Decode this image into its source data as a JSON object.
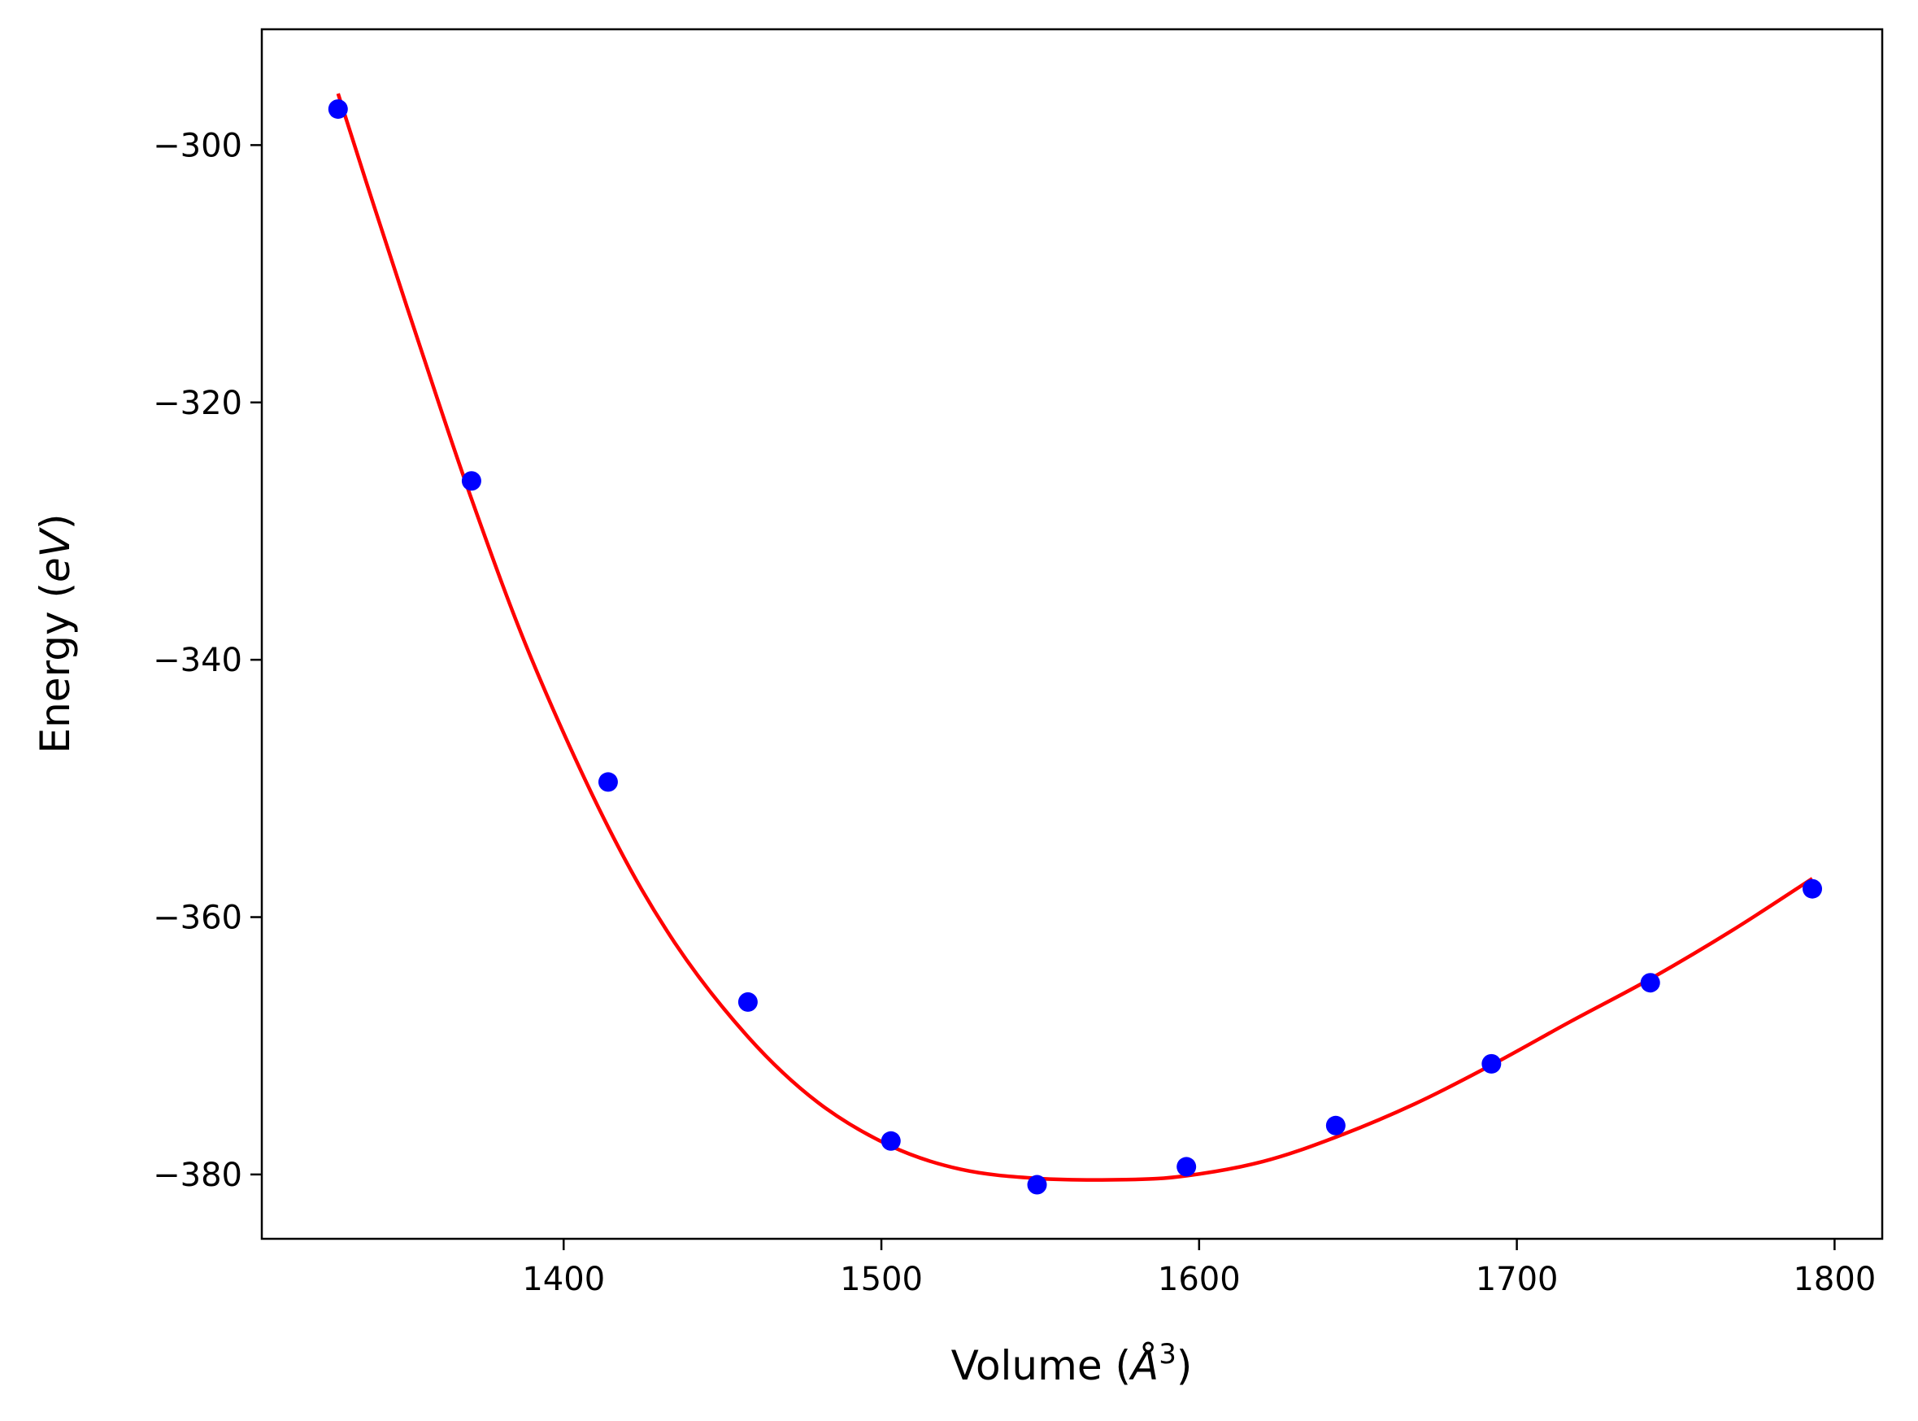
{
  "chart_data": {
    "type": "scatter",
    "xlabel": "Volume (",
    "xlabel_math": "Å",
    "xlabel_sup": "3",
    "xlabel_close": ")",
    "ylabel": "Energy (",
    "ylabel_math": "eV",
    "ylabel_close": ")",
    "xlim": [
      1305,
      1815
    ],
    "ylim": [
      -385,
      -291
    ],
    "xticks": [
      1400,
      1500,
      1600,
      1700,
      1800
    ],
    "xtick_labels": [
      "1400",
      "1500",
      "1600",
      "1700",
      "1800"
    ],
    "yticks": [
      -300,
      -320,
      -340,
      -360,
      -380
    ],
    "ytick_labels": [
      "−300",
      "−320",
      "−340",
      "−360",
      "−380"
    ],
    "grid": false,
    "series": [
      {
        "kind": "points",
        "color": "#0000ff",
        "x": [
          1329,
          1371,
          1414,
          1458,
          1503,
          1549,
          1596,
          1643,
          1692,
          1742,
          1793
        ],
        "y": [
          -297.2,
          -326.1,
          -349.5,
          -366.6,
          -377.4,
          -380.8,
          -379.4,
          -376.2,
          -371.4,
          -365.1,
          -357.8
        ]
      },
      {
        "kind": "fit-line",
        "color": "#ff0000",
        "x": [
          1329,
          1340,
          1355,
          1371,
          1390,
          1414,
          1435,
          1458,
          1480,
          1503,
          1525,
          1549,
          1577,
          1596,
          1620,
          1643,
          1668,
          1692,
          1717,
          1742,
          1768,
          1793
        ],
        "y": [
          -296.0,
          -304.5,
          -315.8,
          -327.5,
          -340.0,
          -353.0,
          -362.0,
          -369.3,
          -374.4,
          -377.8,
          -379.6,
          -380.3,
          -380.4,
          -380.1,
          -379.0,
          -377.1,
          -374.5,
          -371.5,
          -368.1,
          -364.8,
          -361.0,
          -357.0
        ]
      }
    ]
  }
}
